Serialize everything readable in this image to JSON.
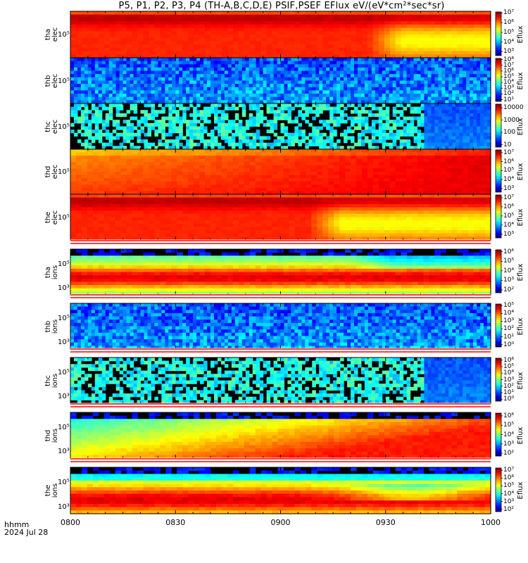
{
  "title": "P5, P1, P2, P3, P4 (TH-A,B,C,D,E) PSIF,PSEF EFlux eV/(eV*cm²*sec*sr)",
  "corner": {
    "line1": "hhmm",
    "line2": "2024 Jul 28"
  },
  "colors": {
    "separator_red": "#ff0000",
    "plot_frame": "#000000",
    "background": "#ffffff"
  },
  "chart_data": [
    {
      "type": "heatmap",
      "probe": "tha",
      "species": "elec",
      "ylabel_line1": "tha",
      "ylabel_line2": "elec",
      "ytick_labels": [
        "10⁵"
      ],
      "colorbar_label": "Eflux",
      "colorbar_ticks": [
        "10⁷",
        "10⁶",
        "10⁵",
        "10⁴",
        "10³"
      ],
      "colorbar_log_range": [
        2.6,
        7.1
      ],
      "pattern": "hot_with_dip",
      "dip_start_time": "0925",
      "fill_until_time": "1000"
    },
    {
      "type": "heatmap",
      "probe": "thb",
      "species": "elec",
      "ylabel_line1": "thb",
      "ylabel_line2": "elec",
      "ytick_labels": [
        "10⁵"
      ],
      "colorbar_label": "Eflux",
      "colorbar_ticks": [
        "10⁸",
        "10⁷",
        "10⁶",
        "10⁵",
        "10⁴",
        "10³",
        "10²",
        "10¹"
      ],
      "colorbar_log_range": [
        0.7,
        8.2
      ],
      "pattern": "cool_noise",
      "fill_until_time": "1000"
    },
    {
      "type": "heatmap",
      "probe": "thc",
      "species": "elec",
      "ylabel_line1": "thc",
      "ylabel_line2": "elec",
      "ytick_labels": [
        "10⁵"
      ],
      "colorbar_label": "Eflux",
      "colorbar_ticks": [
        "10000",
        "1000",
        "100",
        "10"
      ],
      "colorbar_log_range": [
        0.8,
        4.3
      ],
      "pattern": "sparse_speckle",
      "speckle_until_time": "0941",
      "fill_until_time": "1000"
    },
    {
      "type": "heatmap",
      "probe": "thd",
      "species": "elec",
      "ylabel_line1": "thd",
      "ylabel_line2": "elec",
      "ytick_labels": [
        "10⁵"
      ],
      "colorbar_label": "Eflux",
      "colorbar_ticks": [
        "10⁷",
        "10⁶",
        "10⁵",
        "10⁴",
        "10³"
      ],
      "colorbar_log_range": [
        2.6,
        7.3
      ],
      "pattern": "warm_gradient",
      "fill_until_time": "1000"
    },
    {
      "type": "heatmap",
      "probe": "the",
      "species": "elec",
      "ylabel_line1": "the",
      "ylabel_line2": "elec",
      "ytick_labels": [
        "10⁵"
      ],
      "colorbar_label": "Eflux",
      "colorbar_ticks": [
        "10⁷",
        "10⁶",
        "10⁵",
        "10⁴",
        "10³"
      ],
      "colorbar_log_range": [
        2.6,
        7.3
      ],
      "pattern": "hot_with_dip",
      "dip_start_time": "0908",
      "fill_until_time": "1000"
    },
    {
      "type": "heatmap",
      "probe": "tha",
      "species": "ions",
      "ylabel_line1": "tha",
      "ylabel_line2": "ions",
      "ytick_labels": [
        "10⁵",
        "10³"
      ],
      "colorbar_label": "Eflux",
      "colorbar_ticks": [
        "10⁶",
        "10⁵",
        "10⁴",
        "10³",
        "10²"
      ],
      "colorbar_log_range": [
        1.7,
        6.2
      ],
      "pattern": "ion_band",
      "fill_until_time": "1000"
    },
    {
      "type": "heatmap",
      "probe": "thb",
      "species": "ions",
      "ylabel_line1": "thb",
      "ylabel_line2": "ions",
      "ytick_labels": [
        "10⁵",
        "10³"
      ],
      "colorbar_label": "Eflux",
      "colorbar_ticks": [
        "10⁵",
        "10⁴",
        "10³",
        "10²",
        "10¹",
        "10⁰"
      ],
      "colorbar_log_range": [
        -0.3,
        5.2
      ],
      "pattern": "cool_noise",
      "fill_until_time": "1000"
    },
    {
      "type": "heatmap",
      "probe": "thc",
      "species": "ions",
      "ylabel_line1": "thc",
      "ylabel_line2": "ions",
      "ytick_labels": [
        "10⁵",
        "10³"
      ],
      "colorbar_label": "Eflux",
      "colorbar_ticks": [
        "10⁶",
        "10⁵",
        "10⁴",
        "10³",
        "10²",
        "10¹",
        "10⁰"
      ],
      "colorbar_log_range": [
        -0.3,
        6.3
      ],
      "pattern": "sparse_speckle",
      "speckle_until_time": "0941",
      "fill_until_time": "1000"
    },
    {
      "type": "heatmap",
      "probe": "thd",
      "species": "ions",
      "ylabel_line1": "thd",
      "ylabel_line2": "ions",
      "ytick_labels": [
        "10⁵",
        "10³"
      ],
      "colorbar_label": "Eflux",
      "colorbar_ticks": [
        "10⁶",
        "10⁵",
        "10⁴",
        "10³",
        "10²"
      ],
      "colorbar_log_range": [
        1.7,
        6.3
      ],
      "pattern": "ion_ramp",
      "fill_until_time": "1000"
    },
    {
      "type": "heatmap",
      "probe": "the",
      "species": "ions",
      "ylabel_line1": "the",
      "ylabel_line2": "ions",
      "ytick_labels": [
        "10⁵",
        "10³"
      ],
      "colorbar_label": "Eflux",
      "colorbar_ticks": [
        "10⁷",
        "10⁶",
        "10⁵",
        "10⁴",
        "10³",
        "10²"
      ],
      "colorbar_log_range": [
        1.7,
        7.3
      ],
      "pattern": "ion_band_dip",
      "fill_until_time": "1000"
    }
  ],
  "x_axis": {
    "tick_labels": [
      "0800",
      "0830",
      "0900",
      "0930",
      "1000"
    ],
    "range": [
      "0800",
      "1000"
    ],
    "unit": "hhmm"
  }
}
